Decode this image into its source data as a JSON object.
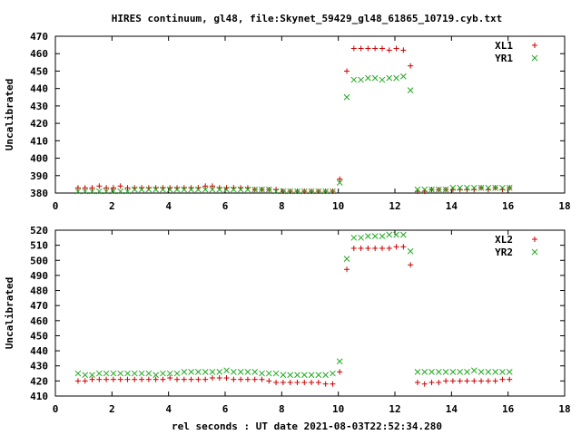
{
  "title": "HIRES continuum, gl48, file:Skynet_59429_gl48_61865_10719.cyb.txt",
  "xlabel": "rel seconds : UT date 2021-08-03T22:52:34.280",
  "colors": {
    "plus": "#cc0000",
    "cross": "#22aa22"
  },
  "chart_data": [
    {
      "type": "scatter",
      "ylabel": "Uncalibrated",
      "xlim": [
        0,
        18
      ],
      "ylim": [
        380,
        470
      ],
      "xticks": [
        0,
        2,
        4,
        6,
        8,
        10,
        12,
        14,
        16,
        18
      ],
      "yticks": [
        380,
        390,
        400,
        410,
        420,
        430,
        440,
        450,
        460,
        470
      ],
      "legend_position": "top-right",
      "x": [
        0.8,
        1.05,
        1.3,
        1.55,
        1.8,
        2.05,
        2.3,
        2.55,
        2.8,
        3.05,
        3.3,
        3.55,
        3.8,
        4.05,
        4.3,
        4.55,
        4.8,
        5.05,
        5.3,
        5.55,
        5.8,
        6.05,
        6.3,
        6.55,
        6.8,
        7.05,
        7.3,
        7.55,
        7.8,
        8.05,
        8.3,
        8.55,
        8.8,
        9.05,
        9.3,
        9.55,
        9.8,
        10.05,
        10.3,
        10.55,
        10.8,
        11.05,
        11.3,
        11.55,
        11.8,
        12.05,
        12.3,
        12.55,
        12.8,
        13.05,
        13.3,
        13.55,
        13.8,
        14.05,
        14.3,
        14.55,
        14.8,
        15.05,
        15.3,
        15.55,
        15.8,
        16.05
      ],
      "series": [
        {
          "name": "XL1",
          "marker": "plus",
          "values": [
            383,
            383,
            383,
            384,
            383,
            383,
            384,
            383,
            383,
            383,
            383,
            383,
            383,
            383,
            383,
            383,
            383,
            383,
            384,
            384,
            383,
            383,
            383,
            383,
            383,
            382,
            382,
            382,
            382,
            381,
            381,
            381,
            381,
            381,
            381,
            381,
            381,
            388,
            450,
            463,
            463,
            463,
            463,
            463,
            462,
            463,
            462,
            453,
            381,
            381,
            382,
            382,
            382,
            382,
            382,
            382,
            382,
            383,
            382,
            383,
            382,
            383
          ]
        },
        {
          "name": "YR1",
          "marker": "cross",
          "values": [
            381,
            381,
            381,
            381,
            381,
            381,
            381,
            381,
            382,
            382,
            382,
            382,
            382,
            382,
            382,
            382,
            382,
            382,
            382,
            382,
            382,
            382,
            382,
            382,
            382,
            382,
            382,
            382,
            381,
            381,
            381,
            381,
            381,
            381,
            381,
            381,
            381,
            386,
            435,
            445,
            445,
            446,
            446,
            445,
            446,
            446,
            447,
            439,
            382,
            382,
            382,
            382,
            382,
            383,
            383,
            383,
            383,
            383,
            383,
            383,
            383,
            383
          ]
        }
      ]
    },
    {
      "type": "scatter",
      "ylabel": "Uncalibrated",
      "xlim": [
        0,
        18
      ],
      "ylim": [
        410,
        520
      ],
      "xticks": [
        0,
        2,
        4,
        6,
        8,
        10,
        12,
        14,
        16,
        18
      ],
      "yticks": [
        410,
        420,
        430,
        440,
        450,
        460,
        470,
        480,
        490,
        500,
        510,
        520
      ],
      "legend_position": "top-right",
      "x": [
        0.8,
        1.05,
        1.3,
        1.55,
        1.8,
        2.05,
        2.3,
        2.55,
        2.8,
        3.05,
        3.3,
        3.55,
        3.8,
        4.05,
        4.3,
        4.55,
        4.8,
        5.05,
        5.3,
        5.55,
        5.8,
        6.05,
        6.3,
        6.55,
        6.8,
        7.05,
        7.3,
        7.55,
        7.8,
        8.05,
        8.3,
        8.55,
        8.8,
        9.05,
        9.3,
        9.55,
        9.8,
        10.05,
        10.3,
        10.55,
        10.8,
        11.05,
        11.3,
        11.55,
        11.8,
        12.05,
        12.3,
        12.55,
        12.8,
        13.05,
        13.3,
        13.55,
        13.8,
        14.05,
        14.3,
        14.55,
        14.8,
        15.05,
        15.3,
        15.55,
        15.8,
        16.05
      ],
      "series": [
        {
          "name": "XL2",
          "marker": "plus",
          "values": [
            420,
            420,
            421,
            421,
            421,
            421,
            421,
            421,
            421,
            421,
            421,
            421,
            421,
            422,
            421,
            421,
            421,
            421,
            421,
            422,
            422,
            422,
            421,
            421,
            421,
            421,
            421,
            420,
            419,
            419,
            419,
            419,
            419,
            419,
            419,
            418,
            418,
            426,
            494,
            508,
            508,
            508,
            508,
            508,
            508,
            509,
            509,
            497,
            419,
            418,
            419,
            419,
            420,
            420,
            420,
            420,
            420,
            420,
            420,
            420,
            421,
            421
          ]
        },
        {
          "name": "YR2",
          "marker": "cross",
          "values": [
            425,
            424,
            424,
            425,
            425,
            425,
            425,
            425,
            425,
            425,
            425,
            424,
            425,
            425,
            425,
            426,
            426,
            426,
            426,
            426,
            426,
            427,
            426,
            426,
            426,
            426,
            425,
            425,
            425,
            424,
            424,
            424,
            424,
            424,
            424,
            424,
            425,
            433,
            501,
            515,
            515,
            516,
            516,
            516,
            517,
            517,
            517,
            506,
            426,
            426,
            426,
            426,
            426,
            426,
            426,
            426,
            427,
            426,
            426,
            426,
            426,
            426
          ]
        }
      ]
    }
  ]
}
